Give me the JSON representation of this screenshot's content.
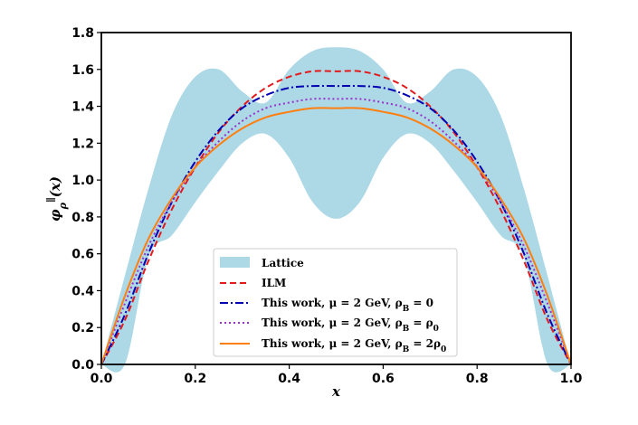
{
  "chart_data": {
    "type": "line",
    "title": "",
    "xlabel": "x",
    "ylabel": "φ_ρ^∥(x)",
    "xlim": [
      0.0,
      1.0
    ],
    "ylim": [
      0.0,
      1.8
    ],
    "x_ticks": [
      "0.0",
      "0.2",
      "0.4",
      "0.6",
      "0.8",
      "1.0"
    ],
    "y_ticks": [
      "0.0",
      "0.2",
      "0.4",
      "0.6",
      "0.8",
      "1.0",
      "1.2",
      "1.4",
      "1.6",
      "1.8"
    ],
    "grid": false,
    "legend_position": "lower-center",
    "band": {
      "name": "Lattice",
      "color": "#add8e6",
      "x": [
        0.0,
        0.05,
        0.1,
        0.15,
        0.2,
        0.25,
        0.3,
        0.35,
        0.4,
        0.45,
        0.5,
        0.55,
        0.6,
        0.65,
        0.7,
        0.75,
        0.8,
        0.85,
        0.9,
        0.95,
        1.0
      ],
      "upper": [
        0.0,
        0.48,
        0.95,
        1.35,
        1.56,
        1.6,
        1.48,
        1.42,
        1.6,
        1.7,
        1.72,
        1.7,
        1.6,
        1.42,
        1.48,
        1.6,
        1.56,
        1.35,
        0.95,
        0.48,
        0.0
      ],
      "lower": [
        0.0,
        0.0,
        0.58,
        0.7,
        0.88,
        1.05,
        1.2,
        1.25,
        1.12,
        0.88,
        0.79,
        0.88,
        1.12,
        1.25,
        1.2,
        1.05,
        0.88,
        0.7,
        0.58,
        0.0,
        0.0
      ]
    },
    "x": [
      0.0,
      0.05,
      0.1,
      0.15,
      0.2,
      0.25,
      0.3,
      0.35,
      0.4,
      0.45,
      0.5,
      0.55,
      0.6,
      0.65,
      0.7,
      0.75,
      0.8,
      0.85,
      0.9,
      0.95,
      1.0
    ],
    "series": [
      {
        "name": "ILM",
        "color": "#e31a1c",
        "style": "dashed",
        "values": [
          0.0,
          0.24,
          0.56,
          0.84,
          1.07,
          1.26,
          1.4,
          1.5,
          1.56,
          1.59,
          1.59,
          1.59,
          1.56,
          1.5,
          1.4,
          1.26,
          1.07,
          0.84,
          0.56,
          0.24,
          0.0
        ]
      },
      {
        "name": "This work, μ = 2 GeV, ρ_B = 0",
        "color": "#0000b3",
        "style": "dashdot",
        "values": [
          0.0,
          0.27,
          0.6,
          0.88,
          1.1,
          1.27,
          1.39,
          1.46,
          1.5,
          1.51,
          1.51,
          1.51,
          1.5,
          1.46,
          1.39,
          1.27,
          1.1,
          0.88,
          0.6,
          0.27,
          0.0
        ]
      },
      {
        "name": "This work, μ = 2 GeV, ρ_B = ρ_0",
        "color": "#9932cc",
        "style": "dotted",
        "values": [
          0.0,
          0.33,
          0.64,
          0.88,
          1.07,
          1.21,
          1.32,
          1.39,
          1.42,
          1.44,
          1.44,
          1.44,
          1.42,
          1.39,
          1.32,
          1.21,
          1.07,
          0.88,
          0.64,
          0.33,
          0.0
        ]
      },
      {
        "name": "This work, μ = 2 GeV, ρ_B = 2ρ_0",
        "color": "#ff7f0e",
        "style": "solid",
        "values": [
          0.0,
          0.37,
          0.68,
          0.9,
          1.07,
          1.19,
          1.28,
          1.34,
          1.37,
          1.39,
          1.39,
          1.39,
          1.37,
          1.34,
          1.28,
          1.19,
          1.07,
          0.9,
          0.68,
          0.37,
          0.0
        ]
      }
    ]
  }
}
